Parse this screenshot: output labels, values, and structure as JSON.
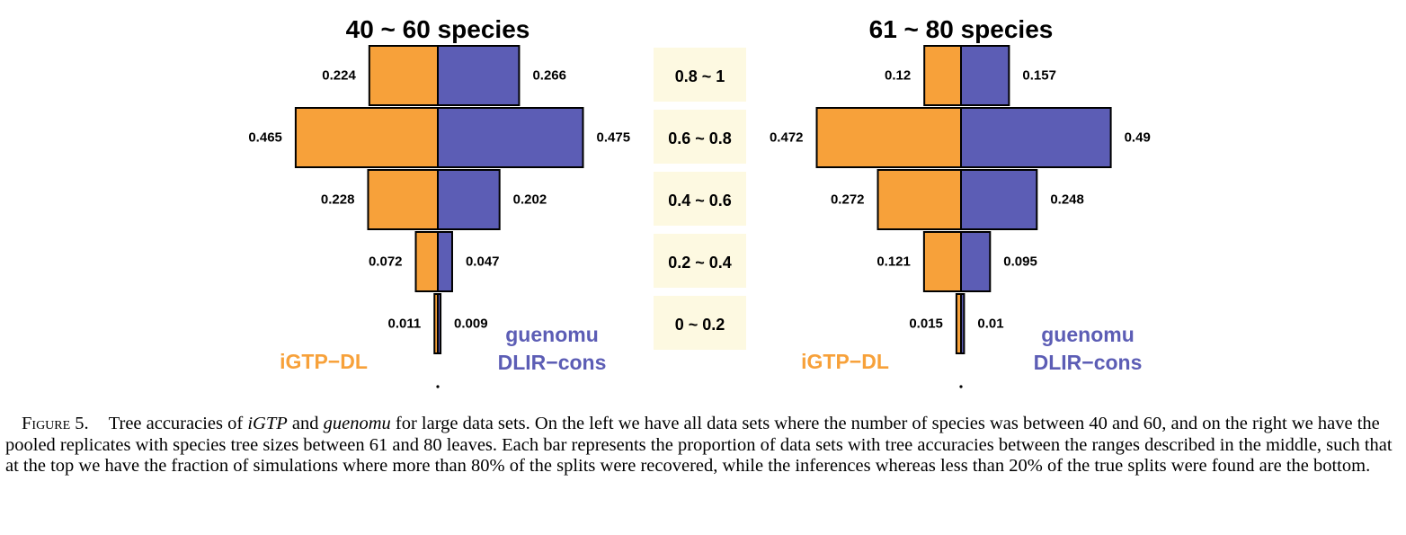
{
  "chart_data": [
    {
      "type": "bar",
      "title": "40 ~ 60 species",
      "categories": [
        "0.8 ~ 1",
        "0.6 ~ 0.8",
        "0.4 ~ 0.6",
        "0.2 ~ 0.4",
        "0 ~ 0.2"
      ],
      "series": [
        {
          "name": "iGTP−DL",
          "values": [
            0.224,
            0.465,
            0.228,
            0.072,
            0.011
          ]
        },
        {
          "name": "guenomu DLIR−cons",
          "values": [
            0.266,
            0.475,
            0.202,
            0.047,
            0.009
          ]
        }
      ],
      "value_labels": {
        "left": [
          "0.224",
          "0.465",
          "0.228",
          "0.072",
          "0.011"
        ],
        "right": [
          "0.266",
          "0.475",
          "0.202",
          "0.047",
          "0.009"
        ]
      },
      "legend": {
        "left_line1": "iGTP−DL",
        "right_line1": "guenomu",
        "right_line2": "DLIR−cons"
      },
      "grid": false,
      "legend_position": "bottom"
    },
    {
      "type": "bar",
      "title": "61 ~ 80 species",
      "categories": [
        "0.8 ~ 1",
        "0.6 ~ 0.8",
        "0.4 ~ 0.6",
        "0.2 ~ 0.4",
        "0 ~ 0.2"
      ],
      "series": [
        {
          "name": "iGTP−DL",
          "values": [
            0.12,
            0.472,
            0.272,
            0.121,
            0.015
          ]
        },
        {
          "name": "guenomu DLIR−cons",
          "values": [
            0.157,
            0.49,
            0.248,
            0.095,
            0.01
          ]
        }
      ],
      "value_labels": {
        "left": [
          "0.12",
          "0.472",
          "0.272",
          "0.121",
          "0.015"
        ],
        "right": [
          "0.157",
          "0.49",
          "0.248",
          "0.095",
          "0.01"
        ]
      },
      "legend": {
        "left_line1": "iGTP−DL",
        "right_line1": "guenomu",
        "right_line2": "DLIR−cons"
      },
      "grid": false,
      "legend_position": "bottom"
    }
  ],
  "colors": {
    "igtp": "#F7A13A",
    "guenomu": "#5C5DB5",
    "range_box": "#FDF9E1",
    "stroke": "#000000"
  },
  "caption": {
    "label": "Figure 5.",
    "text_1": "Tree accuracies of ",
    "italic_1": "iGTP",
    "text_2": " and ",
    "italic_2": "guenomu",
    "text_3": " for large data sets. On the left we have all data sets where the number of species was between 40 and 60, and on the right we have the pooled replicates with species tree sizes between 61 and  80 leaves. Each bar represents the proportion of data sets with tree accuracies between the ranges described in the middle, such that at the top we have the fraction of simulations where more than 80% of the splits were recovered, while the inferences whereas less than 20% of the true splits were found are the bottom."
  }
}
